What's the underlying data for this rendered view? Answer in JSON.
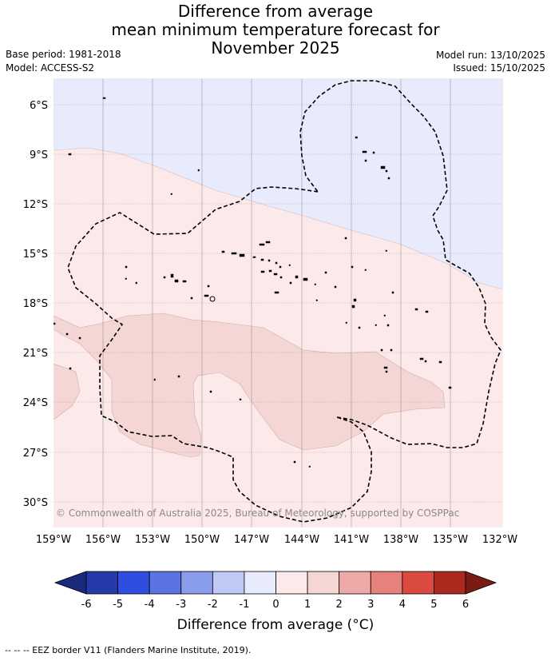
{
  "title": {
    "line1": "Difference from average",
    "line2": "mean minimum temperature forecast for",
    "line3": "November 2025"
  },
  "meta": {
    "base_period": "Base period: 1981-2018",
    "model": "Model: ACCESS-S2",
    "model_run": "Model run: 13/10/2025",
    "issued": "Issued: 15/10/2025"
  },
  "map": {
    "lat_ticks": [
      "6°S",
      "9°S",
      "12°S",
      "15°S",
      "18°S",
      "21°S",
      "24°S",
      "27°S",
      "30°S"
    ],
    "lon_ticks": [
      "159°W",
      "156°W",
      "153°W",
      "150°W",
      "147°W",
      "144°W",
      "141°W",
      "138°W",
      "135°W",
      "132°W"
    ],
    "copyright": "© Commonwealth of Australia 2025, Bureau of Meteorology, supported by COSPPac",
    "fill_colors": {
      "minus_1_to_0": "#e8ebfb",
      "0_to_1": "#fbeae9",
      "1_to_2": "#f4d6d5"
    }
  },
  "colorbar": {
    "ticks": [
      "-6",
      "-5",
      "-4",
      "-3",
      "-2",
      "-1",
      "0",
      "1",
      "2",
      "3",
      "4",
      "5",
      "6"
    ],
    "colors": [
      "#243aa8",
      "#2f4ee0",
      "#5a74e4",
      "#8a9ded",
      "#c0c8f5",
      "#e8ebfb",
      "#fbeae9",
      "#f4d6d5",
      "#eeaaa8",
      "#e6817b",
      "#da4a40",
      "#ab2a20"
    ],
    "under_color": "#1a2a7a",
    "over_color": "#7a1b15",
    "label": "Difference from average (°C)"
  },
  "footnote": "--  --  -- EEZ border V11 (Flanders Marine Institute, 2019)."
}
